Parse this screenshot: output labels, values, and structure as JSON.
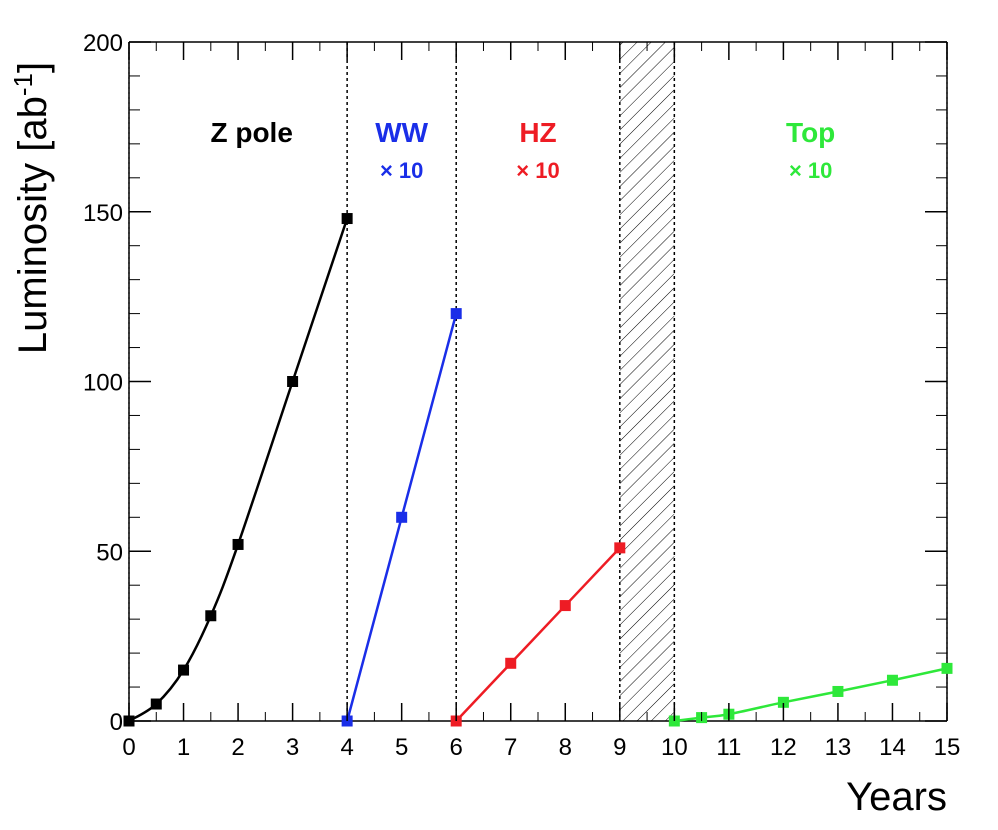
{
  "chart_data": {
    "type": "line",
    "xlabel": "Years",
    "ylabel_main": "Luminosity [ab",
    "ylabel_sup": "-1",
    "ylabel_close": "]",
    "xlim": [
      0,
      15
    ],
    "ylim": [
      0,
      200
    ],
    "x_ticks": [
      "0",
      "1",
      "2",
      "3",
      "4",
      "5",
      "6",
      "7",
      "8",
      "9",
      "10",
      "11",
      "12",
      "13",
      "14",
      "15"
    ],
    "y_ticks": [
      "0",
      "50",
      "100",
      "150",
      "200"
    ],
    "grid": false,
    "series": [
      {
        "name": "Z pole",
        "color": "#000000",
        "scale_label": "",
        "label_x": 2.25,
        "points": [
          [
            0,
            0
          ],
          [
            0.5,
            5
          ],
          [
            1,
            15
          ],
          [
            1.5,
            31
          ],
          [
            2,
            52
          ],
          [
            3,
            100
          ],
          [
            4,
            148
          ]
        ]
      },
      {
        "name": "WW",
        "color": "#1a2ee8",
        "scale_label": "× 10",
        "label_x": 5.0,
        "points": [
          [
            4,
            0
          ],
          [
            5,
            60
          ],
          [
            6,
            120
          ]
        ]
      },
      {
        "name": "HZ",
        "color": "#ee1c24",
        "scale_label": "× 10",
        "label_x": 7.5,
        "points": [
          [
            6,
            0
          ],
          [
            7,
            17
          ],
          [
            8,
            34
          ],
          [
            9,
            51
          ]
        ]
      },
      {
        "name": "Top",
        "color": "#2ee83a",
        "scale_label": "× 10",
        "label_x": 12.5,
        "points": [
          [
            10,
            0
          ],
          [
            10.5,
            1
          ],
          [
            11,
            2
          ],
          [
            12,
            5.5
          ],
          [
            13,
            8.7
          ],
          [
            14,
            12
          ],
          [
            15,
            15.5
          ]
        ]
      }
    ],
    "region_boundaries": [
      4,
      6,
      10
    ],
    "shutdown_band": [
      9,
      10
    ]
  }
}
